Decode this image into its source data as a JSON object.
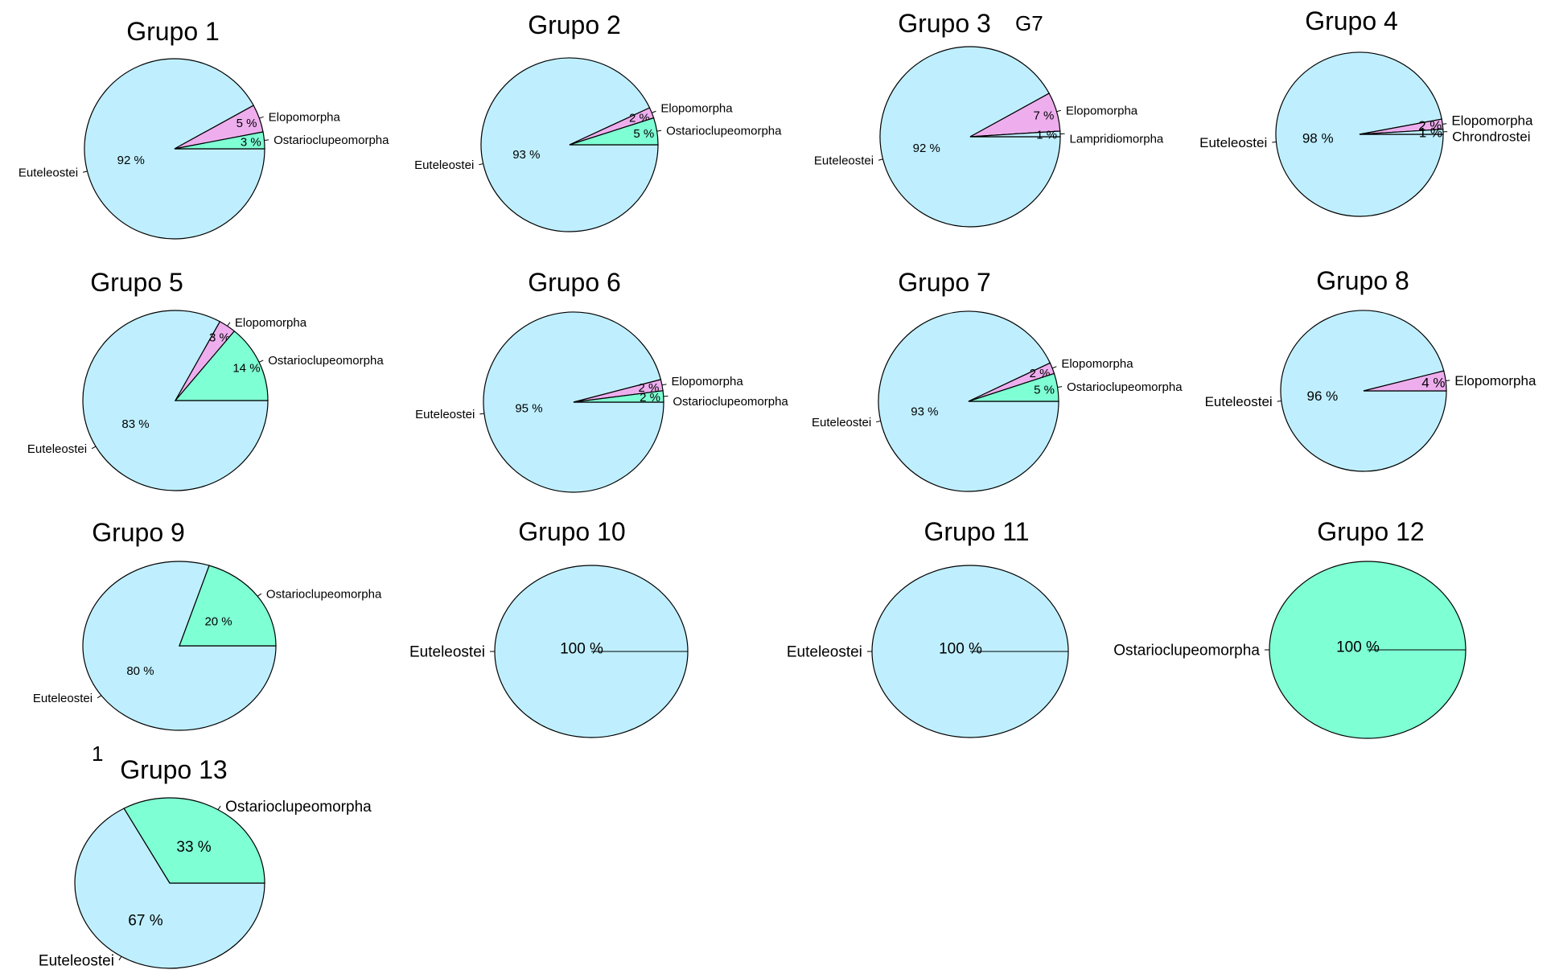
{
  "colors": {
    "Euteleostei": "#BFEFFF",
    "Elopomorpha": "#EEAEEE",
    "Ostarioclupeomorpha": "#7FFFD4",
    "Lampridiomorpha": "#BFEFFF",
    "Chrondrostei": "#BFEFFF"
  },
  "annotations": [
    {
      "text": "G7"
    },
    {
      "text": "1"
    }
  ],
  "chart_data": [
    {
      "type": "pie",
      "title": "Grupo 1",
      "slices": [
        {
          "label": "Euteleostei",
          "value": 92,
          "pct_label": "92 %"
        },
        {
          "label": "Elopomorpha",
          "value": 5,
          "pct_label": "5 %"
        },
        {
          "label": "Ostarioclupeomorpha",
          "value": 3,
          "pct_label": "3 %"
        }
      ]
    },
    {
      "type": "pie",
      "title": "Grupo 2",
      "slices": [
        {
          "label": "Euteleostei",
          "value": 93,
          "pct_label": "93 %"
        },
        {
          "label": "Elopomorpha",
          "value": 2,
          "pct_label": "2 %"
        },
        {
          "label": "Ostarioclupeomorpha",
          "value": 5,
          "pct_label": "5 %"
        }
      ]
    },
    {
      "type": "pie",
      "title": "Grupo 3",
      "slices": [
        {
          "label": "Euteleostei",
          "value": 92,
          "pct_label": "92 %"
        },
        {
          "label": "Elopomorpha",
          "value": 7,
          "pct_label": "7 %"
        },
        {
          "label": "Lampridiomorpha",
          "value": 1,
          "pct_label": "1 %"
        }
      ]
    },
    {
      "type": "pie",
      "title": "Grupo 4",
      "slices": [
        {
          "label": "Euteleostei",
          "value": 98,
          "pct_label": "98 %"
        },
        {
          "label": "Elopomorpha",
          "value": 2,
          "pct_label": "2 %"
        },
        {
          "label": "Chrondrostei",
          "value": 1,
          "pct_label": "1 %"
        }
      ]
    },
    {
      "type": "pie",
      "title": "Grupo 5",
      "slices": [
        {
          "label": "Euteleostei",
          "value": 83,
          "pct_label": "83 %"
        },
        {
          "label": "Elopomorpha",
          "value": 3,
          "pct_label": "3 %"
        },
        {
          "label": "Ostarioclupeomorpha",
          "value": 14,
          "pct_label": "14 %"
        }
      ]
    },
    {
      "type": "pie",
      "title": "Grupo 6",
      "slices": [
        {
          "label": "Euteleostei",
          "value": 95,
          "pct_label": "95 %"
        },
        {
          "label": "Elopomorpha",
          "value": 2,
          "pct_label": "2 %"
        },
        {
          "label": "Ostarioclupeomorpha",
          "value": 2,
          "pct_label": "2 %"
        }
      ]
    },
    {
      "type": "pie",
      "title": "Grupo 7",
      "slices": [
        {
          "label": "Euteleostei",
          "value": 93,
          "pct_label": "93 %"
        },
        {
          "label": "Elopomorpha",
          "value": 2,
          "pct_label": "2 %"
        },
        {
          "label": "Ostarioclupeomorpha",
          "value": 5,
          "pct_label": "5 %"
        }
      ]
    },
    {
      "type": "pie",
      "title": "Grupo 8",
      "slices": [
        {
          "label": "Euteleostei",
          "value": 96,
          "pct_label": "96 %"
        },
        {
          "label": "Elopomorpha",
          "value": 4,
          "pct_label": "4 %"
        }
      ]
    },
    {
      "type": "pie",
      "title": "Grupo 9",
      "slices": [
        {
          "label": "Euteleostei",
          "value": 80,
          "pct_label": "80 %"
        },
        {
          "label": "Ostarioclupeomorpha",
          "value": 20,
          "pct_label": "20 %"
        }
      ]
    },
    {
      "type": "pie",
      "title": "Grupo 10",
      "slices": [
        {
          "label": "Euteleostei",
          "value": 100,
          "pct_label": "100 %"
        }
      ]
    },
    {
      "type": "pie",
      "title": "Grupo 11",
      "slices": [
        {
          "label": "Euteleostei",
          "value": 100,
          "pct_label": "100 %"
        }
      ]
    },
    {
      "type": "pie",
      "title": "Grupo 12",
      "slices": [
        {
          "label": "Ostarioclupeomorpha",
          "value": 100,
          "pct_label": "100 %"
        }
      ]
    },
    {
      "type": "pie",
      "title": "Grupo 13",
      "slices": [
        {
          "label": "Euteleostei",
          "value": 67,
          "pct_label": "67 %"
        },
        {
          "label": "Ostarioclupeomorpha",
          "value": 33,
          "pct_label": "33 %"
        }
      ]
    }
  ]
}
